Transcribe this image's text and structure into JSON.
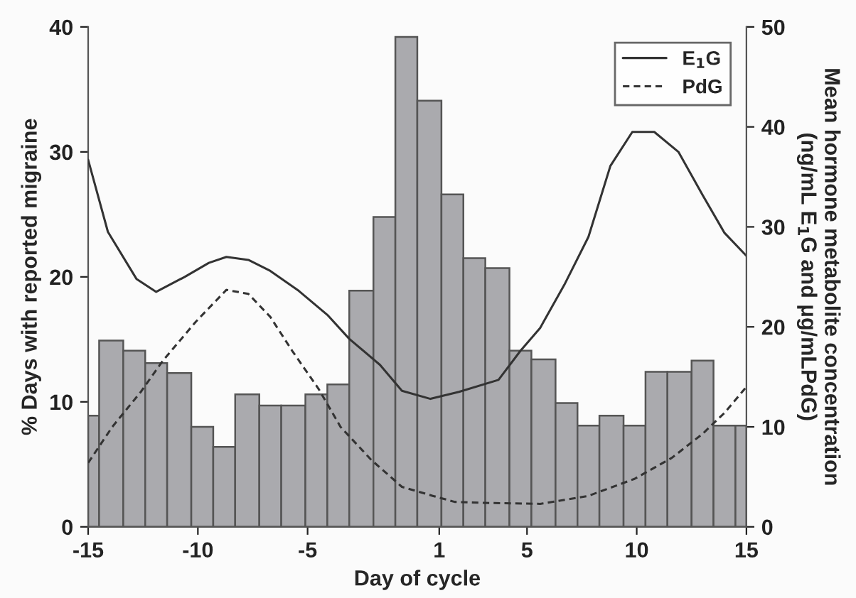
{
  "chart_data": {
    "type": "histogram",
    "xlabel": "Day of cycle",
    "ylabel": "% Days with reported migraine",
    "y2label": "Mean hormone metabolite concentration\n(ng/mL E$_{1}$G and μg/mLPdG)",
    "bins": [
      -15,
      -14.5,
      -13.4,
      -12.4,
      -11.4,
      -10.3,
      -9.3,
      -8.3,
      -7.2,
      -6.2,
      -5.1,
      -4.1,
      -3.1,
      -2.0,
      -1.0,
      0.0,
      1.1,
      2.1,
      3.1,
      4.2,
      5.2,
      6.3,
      7.3,
      8.3,
      9.4,
      10.4,
      11.4,
      12.5,
      13.5,
      14.5,
      15
    ],
    "values": [
      8.9,
      14.9,
      14.1,
      13.1,
      12.3,
      8.0,
      6.4,
      10.6,
      9.7,
      9.7,
      10.6,
      11.4,
      18.9,
      24.8,
      39.2,
      34.1,
      26.6,
      21.5,
      20.7,
      14.1,
      13.4,
      9.9,
      8.1,
      8.9,
      8.1,
      12.4,
      12.4,
      13.3,
      8.1,
      8.1
    ],
    "color": "#aaaaae",
    "series": [
      {
        "name": "E$_{1}$G",
        "type": "line",
        "axis": "y2",
        "color": "#333333",
        "line_style": "solid",
        "x": [
          -15,
          -14.1,
          -12.8,
          -11.9,
          -10.6,
          -9.5,
          -8.7,
          -7.7,
          -6.7,
          -5.4,
          -4.1,
          -3.1,
          -1.7,
          -0.7,
          0.6,
          1.9,
          3.7,
          4.7,
          5.6,
          6.7,
          7.8,
          8.8,
          9.8,
          10.8,
          11.9,
          13.0,
          14.0,
          15.0
        ],
        "values": [
          36.7,
          29.5,
          24.8,
          23.5,
          25.0,
          26.4,
          27.0,
          26.7,
          25.6,
          23.6,
          21.2,
          18.8,
          16.2,
          13.6,
          12.8,
          13.5,
          14.7,
          17.6,
          19.9,
          24.2,
          29.0,
          36.1,
          39.5,
          39.5,
          37.5,
          33.2,
          29.4,
          27.1
        ]
      },
      {
        "name": "PdG",
        "type": "line",
        "axis": "y2",
        "color": "#333333",
        "line_style": "dashed",
        "x": [
          -15,
          -13.9,
          -12.6,
          -11.6,
          -10.1,
          -8.7,
          -7.7,
          -6.7,
          -5.7,
          -4.5,
          -3.5,
          -2.1,
          -0.7,
          0.7,
          1.7,
          3.0,
          5.6,
          7.8,
          9.9,
          11.6,
          13.0,
          14.0,
          15.0
        ],
        "values": [
          6.4,
          10.0,
          13.5,
          16.6,
          20.5,
          23.7,
          23.3,
          21.0,
          17.6,
          13.8,
          10.0,
          6.7,
          4.0,
          3.1,
          2.5,
          2.4,
          2.3,
          3.1,
          4.8,
          6.9,
          9.3,
          11.4,
          14.0
        ]
      }
    ],
    "xlim": [
      -15,
      15
    ],
    "xticks": [
      -15,
      -10,
      -5,
      1,
      5,
      10,
      15
    ],
    "ylim": [
      0,
      40
    ],
    "yticks": [
      0,
      10,
      20,
      30,
      40
    ],
    "y2lim": [
      0,
      50
    ],
    "y2ticks": [
      0,
      10,
      20,
      30,
      40,
      50
    ],
    "grid": false,
    "legend": "top right"
  }
}
